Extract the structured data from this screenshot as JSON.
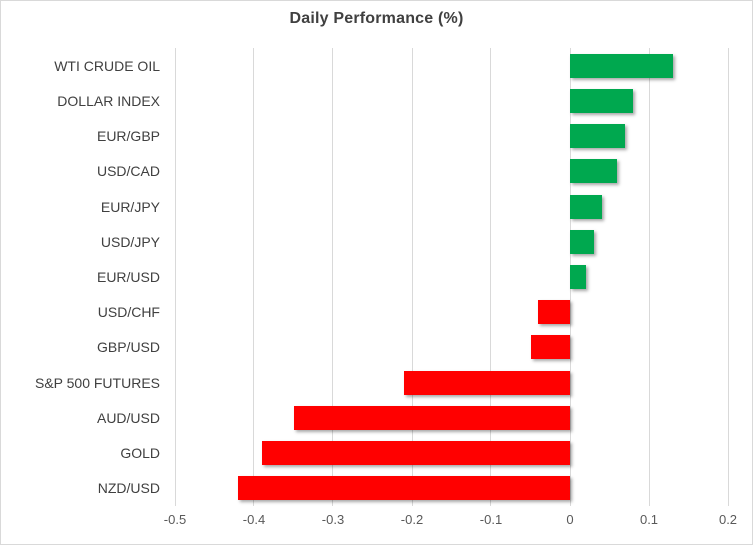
{
  "window": {
    "background_color": "#FFFFFF",
    "border_color": "#D9D9D9"
  },
  "chart_data": {
    "type": "bar",
    "orientation": "horizontal",
    "title": "Daily Performance (%)",
    "categories": [
      "WTI CRUDE OIL",
      "DOLLAR INDEX",
      "EUR/GBP",
      "USD/CAD",
      "EUR/JPY",
      "USD/JPY",
      "EUR/USD",
      "USD/CHF",
      "GBP/USD",
      "S&P 500 FUTURES",
      "AUD/USD",
      "GOLD",
      "NZD/USD"
    ],
    "values": [
      0.13,
      0.08,
      0.07,
      0.06,
      0.04,
      0.03,
      0.02,
      -0.04,
      -0.05,
      -0.21,
      -0.35,
      -0.39,
      -0.42
    ],
    "xlabel": "",
    "ylabel": "",
    "xlim": [
      -0.5,
      0.2
    ],
    "xticks": [
      "-0.5",
      "-0.4",
      "-0.3",
      "-0.2",
      "-0.1",
      "0",
      "0.1",
      "0.2"
    ],
    "grid": true,
    "legend": false,
    "positive_color": "#00A84F",
    "negative_color": "#FF0000",
    "gridline_color": "#D9D9D9",
    "title_color": "#404040",
    "category_label_color": "#404040",
    "tick_label_color": "#595959"
  }
}
